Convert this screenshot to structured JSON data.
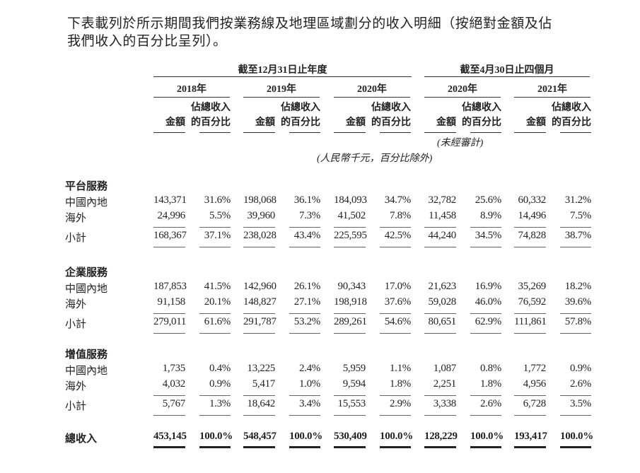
{
  "intro": [
    "下表載列於所示期間我們按業務線及地理區域劃分的收入明細（按絕對金額及佔",
    "我們收入的百分比呈列）。"
  ],
  "header": {
    "period_year": "截至12月31日止年度",
    "period_4m": "截至4月30日止四個月",
    "years": [
      "2018年",
      "2019年",
      "2020年",
      "2020年",
      "2021年"
    ],
    "amount_label": "金額",
    "pct_label_1": "佔總收入",
    "pct_label_2": "的百分比",
    "unaudited": "(未經審計)",
    "unit_note": "(人民幣千元，百分比除外)"
  },
  "sections": [
    {
      "title": "平台服務",
      "rows": [
        {
          "label": "中國內地",
          "values": [
            "143,371",
            "31.6%",
            "198,068",
            "36.1%",
            "184,093",
            "34.7%",
            "32,782",
            "25.6%",
            "60,332",
            "31.2%"
          ]
        },
        {
          "label": "海外",
          "values": [
            "24,996",
            "5.5%",
            "39,960",
            "7.3%",
            "41,502",
            "7.8%",
            "11,458",
            "8.9%",
            "14,496",
            "7.5%"
          ]
        },
        {
          "label": "小計",
          "values": [
            "168,367",
            "37.1%",
            "238,028",
            "43.4%",
            "225,595",
            "42.5%",
            "44,240",
            "34.5%",
            "74,828",
            "38.7%"
          ]
        }
      ]
    },
    {
      "title": "企業服務",
      "rows": [
        {
          "label": "中國內地",
          "values": [
            "187,853",
            "41.5%",
            "142,960",
            "26.1%",
            "90,343",
            "17.0%",
            "21,623",
            "16.9%",
            "35,269",
            "18.2%"
          ]
        },
        {
          "label": "海外",
          "values": [
            "91,158",
            "20.1%",
            "148,827",
            "27.1%",
            "198,918",
            "37.6%",
            "59,028",
            "46.0%",
            "76,592",
            "39.6%"
          ]
        },
        {
          "label": "小計",
          "values": [
            "279,011",
            "61.6%",
            "291,787",
            "53.2%",
            "289,261",
            "54.6%",
            "80,651",
            "62.9%",
            "111,861",
            "57.8%"
          ]
        }
      ]
    },
    {
      "title": "增值服務",
      "rows": [
        {
          "label": "中國內地",
          "values": [
            "1,735",
            "0.4%",
            "13,225",
            "2.4%",
            "5,959",
            "1.1%",
            "1,087",
            "0.8%",
            "1,772",
            "0.9%"
          ]
        },
        {
          "label": "海外",
          "values": [
            "4,032",
            "0.9%",
            "5,417",
            "1.0%",
            "9,594",
            "1.8%",
            "2,251",
            "1.8%",
            "4,956",
            "2.6%"
          ]
        },
        {
          "label": "小計",
          "values": [
            "5,767",
            "1.3%",
            "18,642",
            "3.4%",
            "15,553",
            "2.9%",
            "3,338",
            "2.6%",
            "6,728",
            "3.5%"
          ]
        }
      ]
    }
  ],
  "total": {
    "label": "總收入",
    "values": [
      "453,145",
      "100.0%",
      "548,457",
      "100.0%",
      "530,409",
      "100.0%",
      "128,229",
      "100.0%",
      "193,417",
      "100.0%"
    ]
  }
}
